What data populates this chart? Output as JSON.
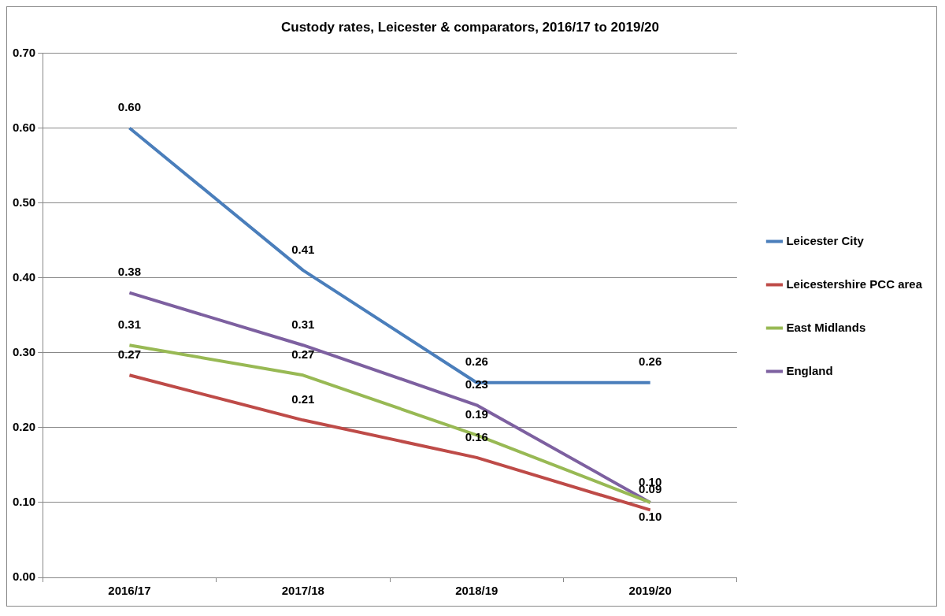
{
  "chart_data": {
    "type": "line",
    "title": "Custody rates, Leicester & comparators, 2016/17 to 2019/20",
    "categories": [
      "2016/17",
      "2017/18",
      "2018/19",
      "2019/20"
    ],
    "series": [
      {
        "name": "Leicester City",
        "color": "#4a7ebb",
        "values": [
          0.6,
          0.41,
          0.26,
          0.26
        ],
        "value_labels": [
          "0.60",
          "0.41",
          "0.26",
          "0.26"
        ]
      },
      {
        "name": "Leicestershire PCC area",
        "color": "#be4b48",
        "values": [
          0.27,
          0.21,
          0.16,
          0.09
        ],
        "value_labels": [
          "0.27",
          "0.21",
          "0.16",
          "0.09"
        ]
      },
      {
        "name": "East Midlands",
        "color": "#98b954",
        "values": [
          0.31,
          0.27,
          0.19,
          0.1
        ],
        "value_labels": [
          "0.31",
          "0.27",
          "0.19",
          "0.10"
        ]
      },
      {
        "name": "England",
        "color": "#7d60a0",
        "values": [
          0.38,
          0.31,
          0.23,
          0.1
        ],
        "value_labels": [
          "0.38",
          "0.31",
          "0.23",
          "0.10"
        ]
      }
    ],
    "ylim": [
      0,
      0.7
    ],
    "yticks": [
      {
        "value": 0,
        "label": "0.00"
      },
      {
        "value": 0.1,
        "label": "0.10"
      },
      {
        "value": 0.2,
        "label": "0.20"
      },
      {
        "value": 0.3,
        "label": "0.30"
      },
      {
        "value": 0.4,
        "label": "0.40"
      },
      {
        "value": 0.5,
        "label": "0.50"
      },
      {
        "value": 0.6,
        "label": "0.60"
      },
      {
        "value": 0.7,
        "label": "0.70"
      }
    ],
    "grid": "y",
    "legend": "right",
    "marker": "none",
    "line_style": "solid"
  }
}
